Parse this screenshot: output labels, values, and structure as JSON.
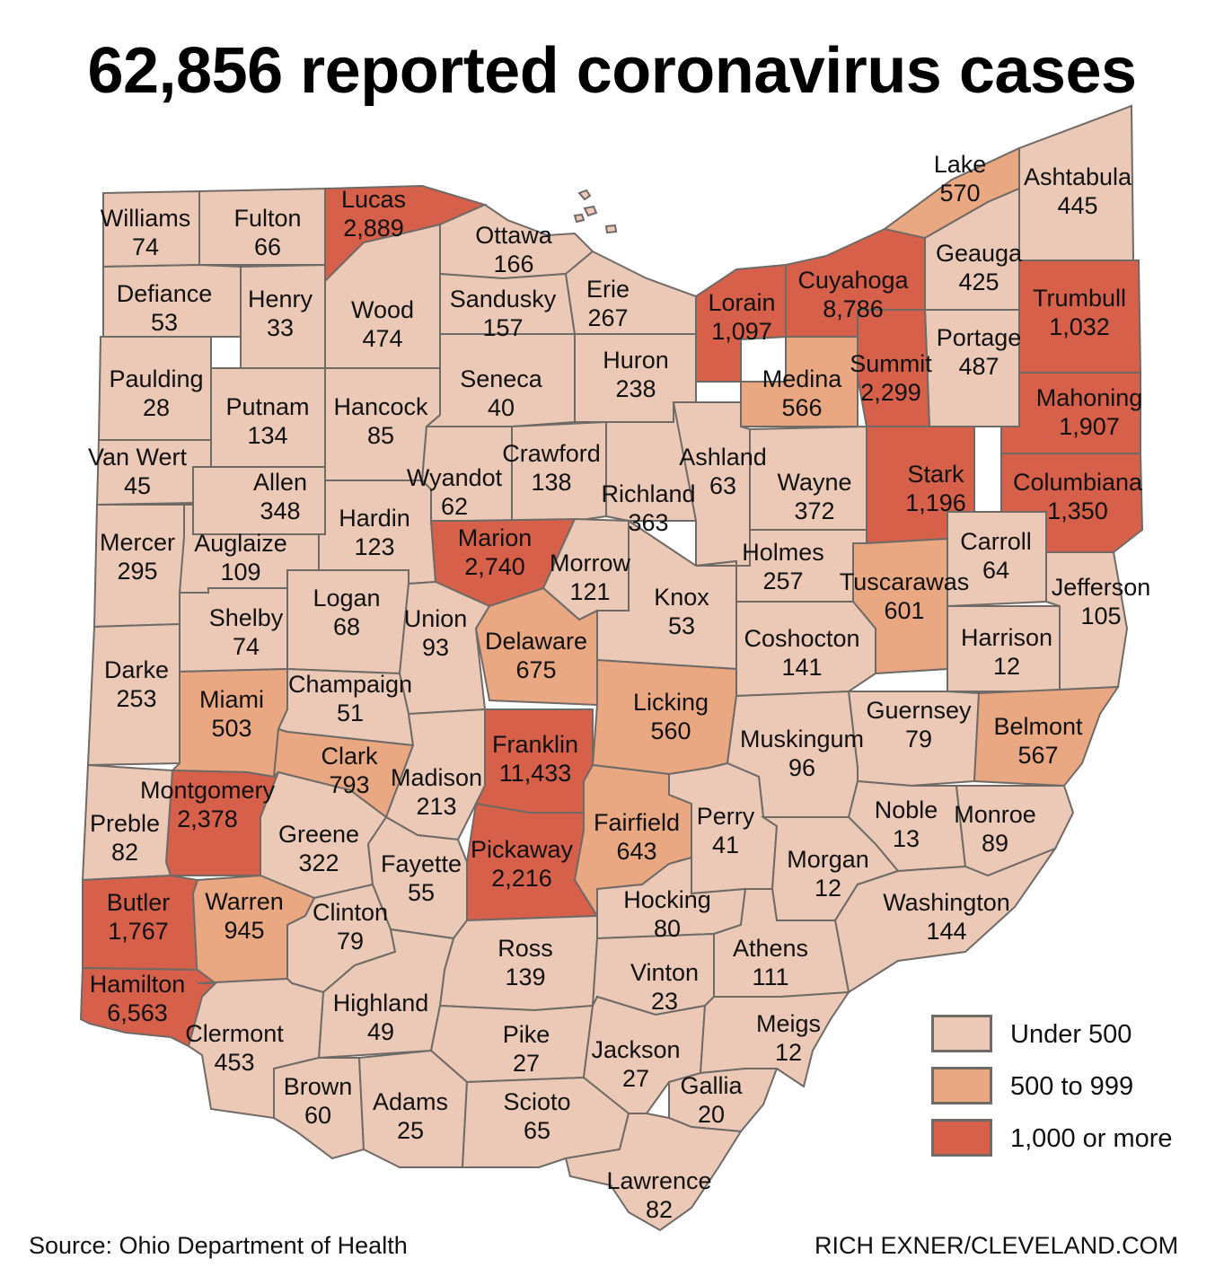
{
  "title": "62,856 reported coronavirus cases",
  "source": "Source: Ohio Department of Health",
  "credit": "RICH EXNER/CLEVELAND.COM",
  "colors": {
    "under_500": "#ecc9b7",
    "500_to_999": "#e9a782",
    "1000_or_more": "#d6604a",
    "border": "#6f6a66"
  },
  "legend": [
    {
      "label": "Under 500",
      "color": "#ecc9b7"
    },
    {
      "label": "500 to 999",
      "color": "#e9a782"
    },
    {
      "label": "1,000 or more",
      "color": "#d6604a"
    }
  ],
  "counties": [
    {
      "name": "Williams",
      "cases": "74"
    },
    {
      "name": "Fulton",
      "cases": "66"
    },
    {
      "name": "Lucas",
      "cases": "2,889"
    },
    {
      "name": "Ottawa",
      "cases": "166"
    },
    {
      "name": "Defiance",
      "cases": "53"
    },
    {
      "name": "Henry",
      "cases": "33"
    },
    {
      "name": "Wood",
      "cases": "474"
    },
    {
      "name": "Sandusky",
      "cases": "157"
    },
    {
      "name": "Erie",
      "cases": "267"
    },
    {
      "name": "Lorain",
      "cases": "1,097"
    },
    {
      "name": "Cuyahoga",
      "cases": "8,786"
    },
    {
      "name": "Lake",
      "cases": "570"
    },
    {
      "name": "Geauga",
      "cases": "425"
    },
    {
      "name": "Ashtabula",
      "cases": "445"
    },
    {
      "name": "Trumbull",
      "cases": "1,032"
    },
    {
      "name": "Portage",
      "cases": "487"
    },
    {
      "name": "Summit",
      "cases": "2,299"
    },
    {
      "name": "Medina",
      "cases": "566"
    },
    {
      "name": "Huron",
      "cases": "238"
    },
    {
      "name": "Seneca",
      "cases": "40"
    },
    {
      "name": "Hancock",
      "cases": "85"
    },
    {
      "name": "Putnam",
      "cases": "134"
    },
    {
      "name": "Paulding",
      "cases": "28"
    },
    {
      "name": "Van Wert",
      "cases": "45"
    },
    {
      "name": "Allen",
      "cases": "348"
    },
    {
      "name": "Wyandot",
      "cases": "62"
    },
    {
      "name": "Crawford",
      "cases": "138"
    },
    {
      "name": "Richland",
      "cases": "363"
    },
    {
      "name": "Ashland",
      "cases": "63"
    },
    {
      "name": "Wayne",
      "cases": "372"
    },
    {
      "name": "Stark",
      "cases": "1,196"
    },
    {
      "name": "Mahoning",
      "cases": "1,907"
    },
    {
      "name": "Columbiana",
      "cases": "1,350"
    },
    {
      "name": "Mercer",
      "cases": "295"
    },
    {
      "name": "Auglaize",
      "cases": "109"
    },
    {
      "name": "Hardin",
      "cases": "123"
    },
    {
      "name": "Marion",
      "cases": "2,740"
    },
    {
      "name": "Morrow",
      "cases": "121"
    },
    {
      "name": "Knox",
      "cases": "53"
    },
    {
      "name": "Holmes",
      "cases": "257"
    },
    {
      "name": "Tuscarawas",
      "cases": "601"
    },
    {
      "name": "Carroll",
      "cases": "64"
    },
    {
      "name": "Jefferson",
      "cases": "105"
    },
    {
      "name": "Harrison",
      "cases": "12"
    },
    {
      "name": "Shelby",
      "cases": "74"
    },
    {
      "name": "Logan",
      "cases": "68"
    },
    {
      "name": "Union",
      "cases": "93"
    },
    {
      "name": "Delaware",
      "cases": "675"
    },
    {
      "name": "Coshocton",
      "cases": "141"
    },
    {
      "name": "Darke",
      "cases": "253"
    },
    {
      "name": "Miami",
      "cases": "503"
    },
    {
      "name": "Champaign",
      "cases": "51"
    },
    {
      "name": "Licking",
      "cases": "560"
    },
    {
      "name": "Guernsey",
      "cases": "79"
    },
    {
      "name": "Belmont",
      "cases": "567"
    },
    {
      "name": "Clark",
      "cases": "793"
    },
    {
      "name": "Madison",
      "cases": "213"
    },
    {
      "name": "Franklin",
      "cases": "11,433"
    },
    {
      "name": "Muskingum",
      "cases": "96"
    },
    {
      "name": "Montgomery",
      "cases": "2,378"
    },
    {
      "name": "Preble",
      "cases": "82"
    },
    {
      "name": "Greene",
      "cases": "322"
    },
    {
      "name": "Fayette",
      "cases": "55"
    },
    {
      "name": "Pickaway",
      "cases": "2,216"
    },
    {
      "name": "Fairfield",
      "cases": "643"
    },
    {
      "name": "Perry",
      "cases": "41"
    },
    {
      "name": "Noble",
      "cases": "13"
    },
    {
      "name": "Monroe",
      "cases": "89"
    },
    {
      "name": "Morgan",
      "cases": "12"
    },
    {
      "name": "Butler",
      "cases": "1,767"
    },
    {
      "name": "Warren",
      "cases": "945"
    },
    {
      "name": "Clinton",
      "cases": "79"
    },
    {
      "name": "Hocking",
      "cases": "80"
    },
    {
      "name": "Washington",
      "cases": "144"
    },
    {
      "name": "Ross",
      "cases": "139"
    },
    {
      "name": "Athens",
      "cases": "111"
    },
    {
      "name": "Hamilton",
      "cases": "6,563"
    },
    {
      "name": "Vinton",
      "cases": "23"
    },
    {
      "name": "Highland",
      "cases": "49"
    },
    {
      "name": "Clermont",
      "cases": "453"
    },
    {
      "name": "Pike",
      "cases": "27"
    },
    {
      "name": "Jackson",
      "cases": "27"
    },
    {
      "name": "Meigs",
      "cases": "12"
    },
    {
      "name": "Brown",
      "cases": "60"
    },
    {
      "name": "Adams",
      "cases": "25"
    },
    {
      "name": "Scioto",
      "cases": "65"
    },
    {
      "name": "Gallia",
      "cases": "20"
    },
    {
      "name": "Lawrence",
      "cases": "82"
    }
  ]
}
